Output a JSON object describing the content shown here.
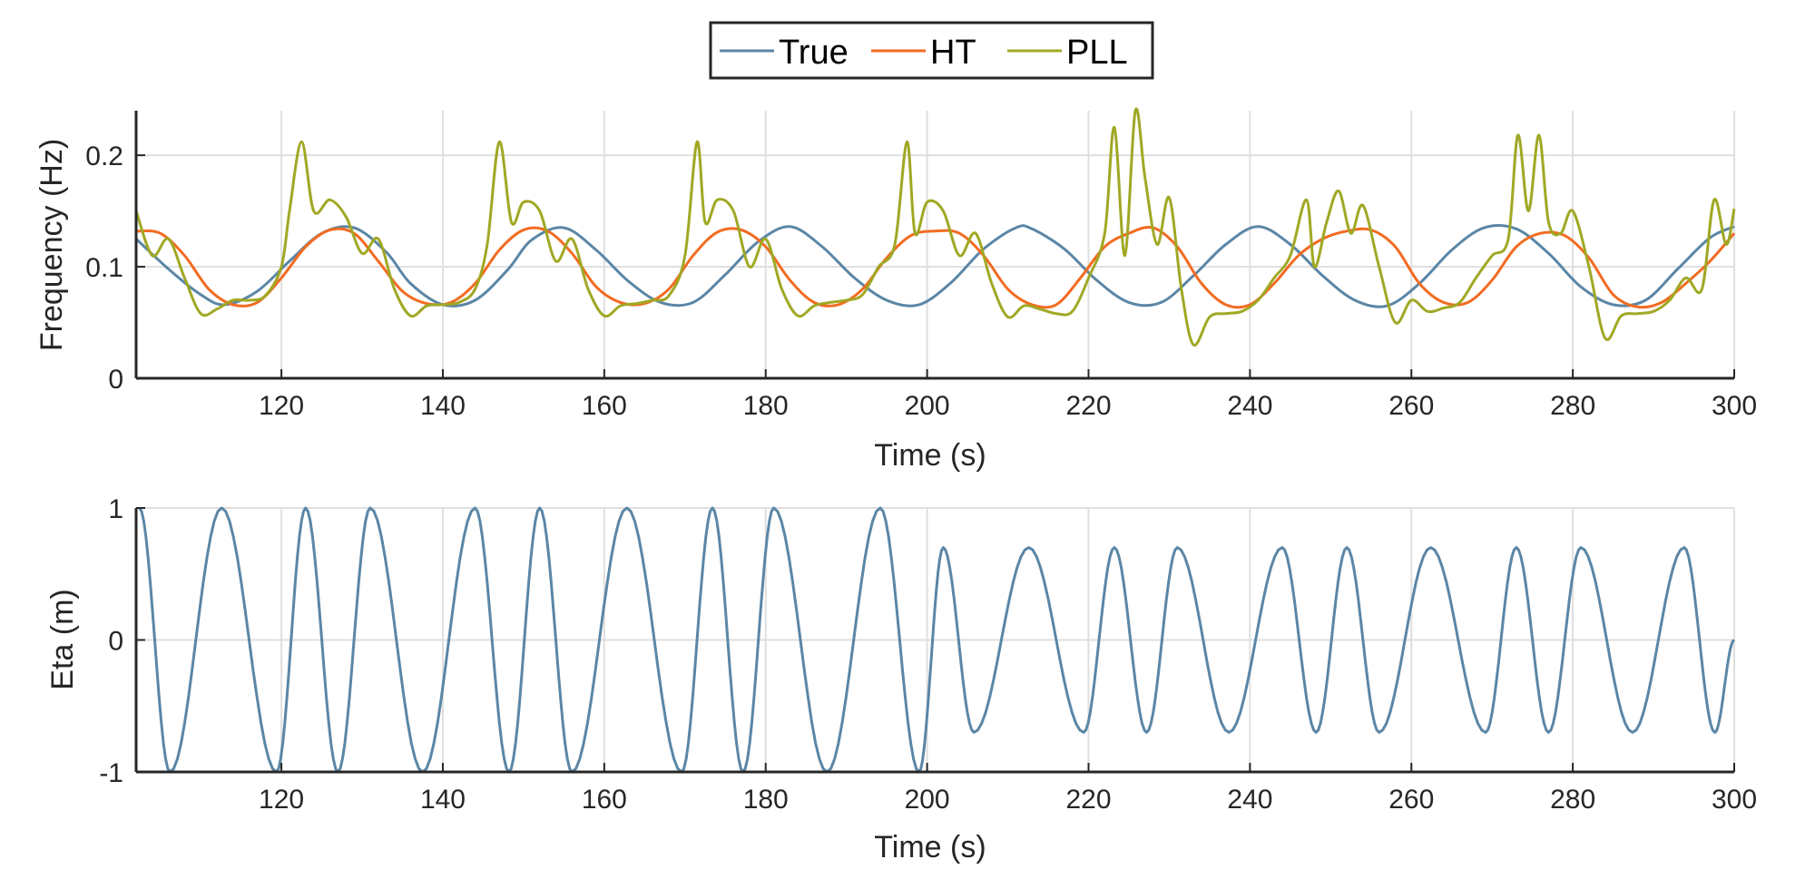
{
  "legend": {
    "entries": [
      {
        "name": "True",
        "color": "#5b86a6"
      },
      {
        "name": "HT",
        "color": "#f26b21"
      },
      {
        "name": "PLL",
        "color": "#a0a824"
      }
    ]
  },
  "chart_data": [
    {
      "type": "line",
      "xlabel": "Time (s)",
      "ylabel": "Frequency (Hz)",
      "xlim": [
        102,
        300
      ],
      "ylim": [
        0,
        0.24
      ],
      "xticks": [
        120,
        140,
        160,
        180,
        200,
        220,
        240,
        260,
        280,
        300
      ],
      "yticks": [
        0,
        0.1,
        0.2
      ],
      "ytick_labels": [
        "0",
        "0.1",
        "0.2"
      ],
      "grid": true,
      "legend_position": "top-center",
      "series": [
        {
          "name": "True",
          "color": "#5b86a6",
          "x": [
            102,
            106,
            110,
            113,
            117,
            121,
            125,
            129,
            133,
            136,
            140,
            144,
            148,
            151,
            155,
            159,
            163,
            167,
            171,
            175,
            179,
            183,
            187,
            191,
            195,
            199,
            203,
            207,
            211,
            213,
            217,
            221,
            225,
            229,
            233,
            237,
            241,
            245,
            249,
            253,
            257,
            261,
            265,
            269,
            273,
            277,
            281,
            285,
            289,
            293,
            297,
            300
          ],
          "y": [
            0.125,
            0.098,
            0.075,
            0.066,
            0.078,
            0.105,
            0.13,
            0.135,
            0.113,
            0.085,
            0.066,
            0.07,
            0.097,
            0.124,
            0.135,
            0.115,
            0.087,
            0.068,
            0.068,
            0.093,
            0.122,
            0.136,
            0.118,
            0.09,
            0.07,
            0.066,
            0.086,
            0.116,
            0.135,
            0.134,
            0.116,
            0.088,
            0.068,
            0.068,
            0.092,
            0.12,
            0.136,
            0.12,
            0.092,
            0.07,
            0.065,
            0.085,
            0.115,
            0.135,
            0.134,
            0.112,
            0.082,
            0.066,
            0.07,
            0.098,
            0.126,
            0.136
          ]
        },
        {
          "name": "HT",
          "color": "#f26b21",
          "x": [
            102,
            105,
            108,
            111,
            114,
            117,
            120,
            123,
            126,
            129,
            132,
            135,
            138,
            141,
            144,
            147,
            150,
            153,
            156,
            159,
            162,
            165,
            168,
            171,
            174,
            177,
            180,
            183,
            186,
            189,
            192,
            195,
            198,
            201,
            204,
            207,
            210,
            213,
            216,
            219,
            222,
            225,
            228,
            231,
            234,
            237,
            240,
            243,
            246,
            249,
            252,
            255,
            258,
            261,
            264,
            267,
            270,
            273,
            276,
            279,
            282,
            285,
            288,
            291,
            294,
            297,
            300
          ],
          "y": [
            0.132,
            0.13,
            0.11,
            0.08,
            0.066,
            0.068,
            0.09,
            0.118,
            0.133,
            0.13,
            0.105,
            0.078,
            0.067,
            0.068,
            0.085,
            0.115,
            0.133,
            0.132,
            0.112,
            0.082,
            0.068,
            0.067,
            0.08,
            0.11,
            0.131,
            0.133,
            0.118,
            0.088,
            0.068,
            0.066,
            0.08,
            0.108,
            0.128,
            0.132,
            0.13,
            0.11,
            0.08,
            0.066,
            0.066,
            0.09,
            0.118,
            0.13,
            0.135,
            0.118,
            0.085,
            0.066,
            0.066,
            0.085,
            0.11,
            0.125,
            0.132,
            0.133,
            0.118,
            0.085,
            0.068,
            0.068,
            0.088,
            0.118,
            0.13,
            0.128,
            0.108,
            0.075,
            0.064,
            0.068,
            0.085,
            0.105,
            0.13
          ]
        },
        {
          "name": "PLL",
          "color": "#a0a824",
          "x": [
            102,
            104,
            106,
            108,
            110,
            112,
            114,
            116,
            118,
            120,
            121,
            122.5,
            124,
            126,
            128,
            130,
            132,
            134,
            136,
            138,
            140,
            142,
            144,
            145.5,
            147,
            148.5,
            150,
            152,
            154,
            156,
            158,
            160,
            162,
            164,
            166,
            168,
            170,
            171.5,
            172.5,
            174,
            176,
            178,
            180,
            182,
            184,
            186,
            188,
            190,
            192,
            194,
            196,
            197.5,
            198.5,
            200,
            202,
            204,
            206,
            208,
            210,
            212,
            214,
            216,
            218,
            220,
            222,
            223.2,
            224.5,
            225.8,
            227,
            228.5,
            230,
            231.5,
            233,
            235,
            237,
            239,
            241,
            243,
            245,
            247,
            248,
            249.5,
            251,
            252.5,
            254,
            256,
            258,
            260,
            262,
            264,
            266,
            268,
            270,
            272,
            273.2,
            274.5,
            275.8,
            277,
            278.5,
            280,
            282,
            284,
            286,
            288,
            290,
            292,
            294,
            296,
            297.5,
            299,
            300
          ],
          "y": [
            0.15,
            0.11,
            0.125,
            0.09,
            0.058,
            0.062,
            0.07,
            0.07,
            0.074,
            0.1,
            0.15,
            0.212,
            0.15,
            0.16,
            0.145,
            0.112,
            0.125,
            0.08,
            0.056,
            0.065,
            0.066,
            0.068,
            0.08,
            0.12,
            0.212,
            0.14,
            0.158,
            0.15,
            0.105,
            0.125,
            0.08,
            0.056,
            0.065,
            0.067,
            0.07,
            0.074,
            0.11,
            0.212,
            0.14,
            0.16,
            0.15,
            0.1,
            0.125,
            0.08,
            0.056,
            0.065,
            0.068,
            0.07,
            0.075,
            0.1,
            0.12,
            0.212,
            0.13,
            0.158,
            0.15,
            0.11,
            0.13,
            0.085,
            0.055,
            0.065,
            0.062,
            0.058,
            0.06,
            0.09,
            0.13,
            0.225,
            0.11,
            0.24,
            0.18,
            0.12,
            0.162,
            0.08,
            0.03,
            0.055,
            0.058,
            0.06,
            0.07,
            0.09,
            0.11,
            0.16,
            0.1,
            0.14,
            0.168,
            0.13,
            0.155,
            0.1,
            0.05,
            0.07,
            0.06,
            0.063,
            0.068,
            0.09,
            0.11,
            0.125,
            0.218,
            0.15,
            0.218,
            0.14,
            0.13,
            0.15,
            0.1,
            0.036,
            0.056,
            0.058,
            0.06,
            0.07,
            0.09,
            0.08,
            0.16,
            0.12,
            0.152
          ]
        }
      ]
    },
    {
      "type": "line",
      "xlabel": "Time (s)",
      "ylabel": "Eta (m)",
      "xlim": [
        102,
        300
      ],
      "ylim": [
        -1,
        1
      ],
      "xticks": [
        120,
        140,
        160,
        180,
        200,
        220,
        240,
        260,
        280,
        300
      ],
      "yticks": [
        -1,
        0,
        1
      ],
      "ytick_labels": [
        "-1",
        "0",
        "1"
      ],
      "grid": true,
      "series": [
        {
          "name": "True",
          "color": "#5b86a6",
          "extrema_t": [
            102.4,
            106.2,
            112.6,
            119.4,
            123.0,
            127.0,
            131.0,
            137.5,
            144.0,
            148.2,
            152.0,
            156.0,
            162.8,
            169.6,
            173.4,
            177.2,
            181.0,
            187.6,
            194.2,
            199.0,
            202.0,
            205.8,
            212.6,
            219.4,
            223.2,
            227.2,
            231.0,
            237.4,
            244.0,
            248.2,
            252.0,
            256.0,
            262.4,
            269.2,
            273.0,
            277.0,
            281.0,
            287.4,
            293.8,
            297.6
          ],
          "extrema_y": [
            1,
            -1,
            1,
            -1,
            1,
            -1,
            1,
            -1,
            1,
            -1,
            1,
            -1,
            1,
            -1,
            1,
            -1,
            1,
            -1,
            1,
            -1,
            0.7,
            -0.7,
            0.7,
            -0.7,
            0.7,
            -0.7,
            0.7,
            -0.7,
            0.7,
            -0.7,
            0.7,
            -0.7,
            0.7,
            -0.7,
            0.7,
            -0.7,
            0.7,
            -0.7,
            0.7,
            -0.7
          ],
          "end": [
            300,
            0
          ]
        }
      ]
    }
  ]
}
